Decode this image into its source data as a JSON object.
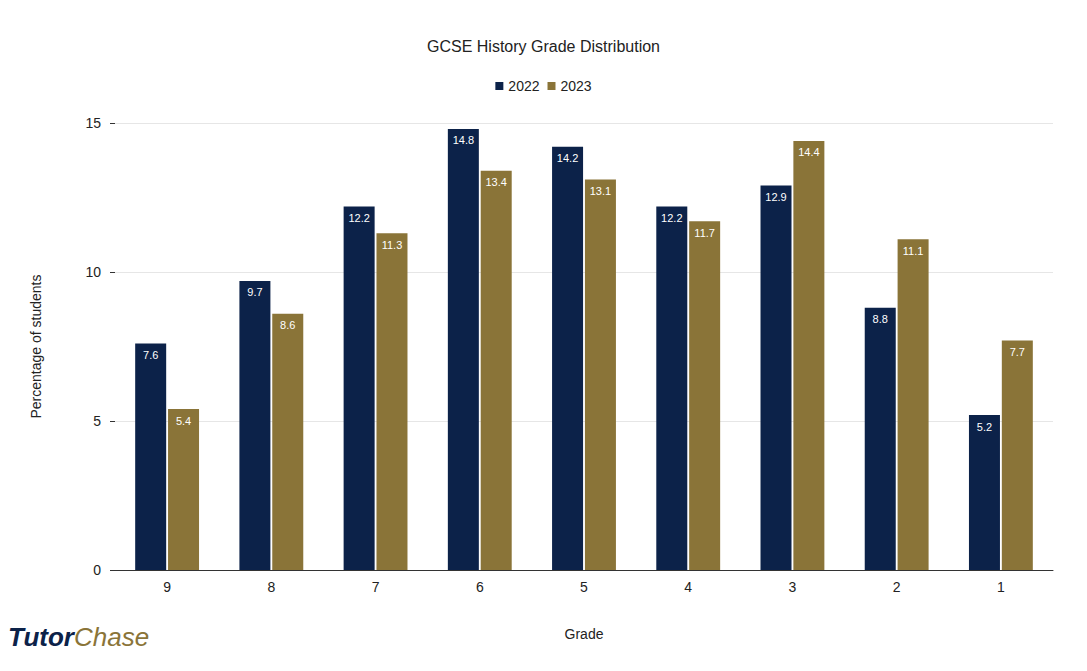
{
  "chart_data": {
    "type": "bar",
    "title": "GCSE History Grade Distribution",
    "x_label": "Grade",
    "y_label": "Percentage of students",
    "categories": [
      "9",
      "8",
      "7",
      "6",
      "5",
      "4",
      "3",
      "2",
      "1"
    ],
    "series": [
      {
        "name": "2022",
        "color": "#0c2249",
        "values": [
          7.6,
          9.7,
          12.2,
          14.8,
          14.2,
          12.2,
          12.9,
          8.8,
          5.2
        ]
      },
      {
        "name": "2023",
        "color": "#8a7438",
        "values": [
          5.4,
          8.6,
          11.3,
          13.4,
          13.1,
          11.7,
          14.4,
          11.1,
          7.7
        ]
      }
    ],
    "ylim": [
      0,
      15
    ],
    "yticks": [
      0,
      5,
      10,
      15
    ],
    "grid": true,
    "legend": "top",
    "data_labels": true,
    "annotations": [
      "Tutor",
      "Chase"
    ]
  }
}
